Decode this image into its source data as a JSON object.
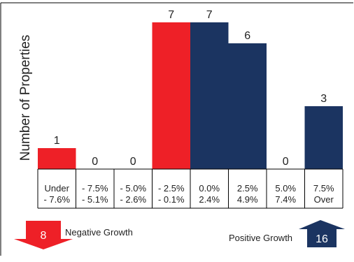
{
  "chart_data": {
    "type": "bar",
    "title": "",
    "xlabel": "",
    "ylabel": "Number of Properties",
    "ylim": [
      0,
      7
    ],
    "grid": false,
    "categories": [
      [
        "Under",
        "- 7.6%"
      ],
      [
        "- 7.5%",
        "- 5.1%"
      ],
      [
        "- 5.0%",
        "- 2.6%"
      ],
      [
        "- 2.5%",
        "- 0.1%"
      ],
      [
        "0.0%",
        "2.4%"
      ],
      [
        "2.5%",
        "4.9%"
      ],
      [
        "5.0%",
        "7.4%"
      ],
      [
        "7.5%",
        "Over"
      ]
    ],
    "values": [
      1,
      0,
      0,
      7,
      7,
      6,
      0,
      3
    ],
    "bar_colors": [
      "#ee2027",
      "#ee2027",
      "#ee2027",
      "#ee2027",
      "#1b3461",
      "#1b3461",
      "#1b3461",
      "#1b3461"
    ],
    "legend": {
      "negative": {
        "count": "8",
        "label": "Negative Growth",
        "color": "#ee2027"
      },
      "positive": {
        "count": "16",
        "label": "Positive Growth",
        "color": "#1b3461"
      }
    }
  }
}
